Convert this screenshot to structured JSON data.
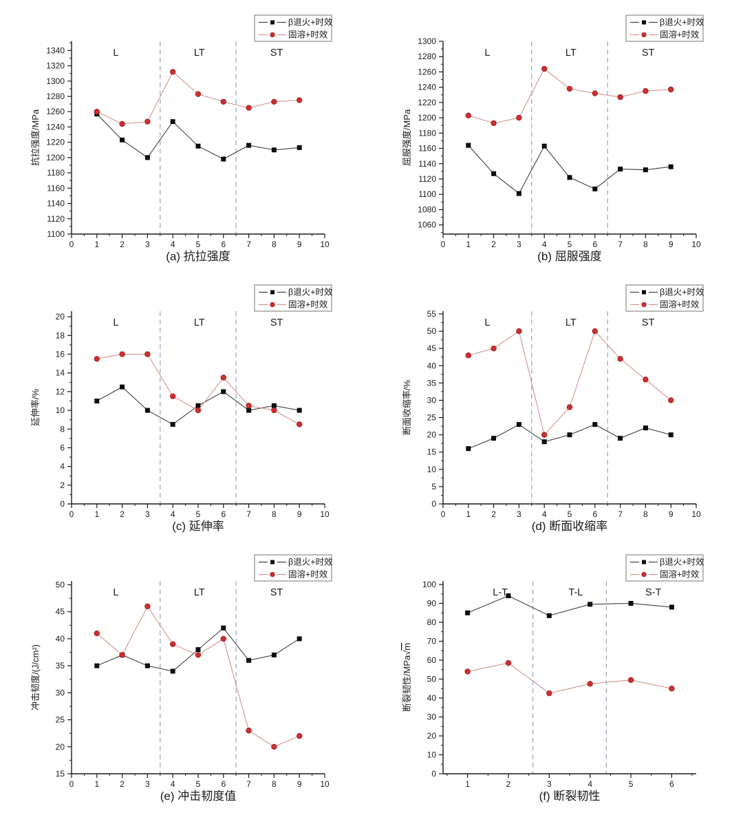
{
  "page": {
    "background": "#ffffff"
  },
  "colors": {
    "black_series_line": "#3f3f3f",
    "black_series_marker": "#0d0d0d",
    "red_series_line": "#d4938a",
    "red_series_marker": "#cd2f2f",
    "red_series_marker_edge": "#9a1f1f",
    "divider_dash": "#98a3c0",
    "axis": "#1a1a1a",
    "legend_border": "#8c8c8c",
    "text": "#1a1a1a"
  },
  "chart_data": [
    {
      "id": "a",
      "type": "line",
      "caption": "(a) 抗拉强度",
      "ylabel": "抗拉强度/MPa",
      "x": [
        1,
        2,
        3,
        4,
        5,
        6,
        7,
        8,
        9
      ],
      "series": [
        {
          "name": "β退火+时效",
          "marker": "square",
          "values": [
            1257,
            1223,
            1200,
            1247,
            1215,
            1198,
            1216,
            1210,
            1213
          ]
        },
        {
          "name": "固溶+时效",
          "marker": "circle",
          "values": [
            1260,
            1244,
            1247,
            1312,
            1283,
            1273,
            1265,
            1273,
            1275
          ]
        }
      ],
      "xlim": [
        0,
        10
      ],
      "ylim": [
        1100,
        1352
      ],
      "xticks": [
        0,
        1,
        2,
        3,
        4,
        5,
        6,
        7,
        8,
        9,
        10
      ],
      "yticks": [
        1100,
        1120,
        1140,
        1160,
        1180,
        1200,
        1220,
        1240,
        1260,
        1280,
        1300,
        1320,
        1340
      ],
      "x_minor_step": 0.5,
      "y_minor_step": 10,
      "regions": {
        "labels": [
          "L",
          "LT",
          "ST"
        ],
        "label_x": [
          1.75,
          5.05,
          8.1
        ],
        "dividers_x": [
          3.5,
          6.5
        ]
      }
    },
    {
      "id": "b",
      "type": "line",
      "caption": "(b) 屈服强度",
      "ylabel": "屈服强度/MPa",
      "x": [
        1,
        2,
        3,
        4,
        5,
        6,
        7,
        8,
        9
      ],
      "series": [
        {
          "name": "β退火+时效",
          "marker": "square",
          "values": [
            1164,
            1127,
            1101,
            1163,
            1122,
            1107,
            1133,
            1132,
            1136
          ]
        },
        {
          "name": "固溶+时效",
          "marker": "circle",
          "values": [
            1203,
            1193,
            1200,
            1264,
            1238,
            1232,
            1227,
            1235,
            1237
          ]
        }
      ],
      "xlim": [
        0,
        10
      ],
      "ylim": [
        1048,
        1300
      ],
      "xticks": [
        0,
        1,
        2,
        3,
        4,
        5,
        6,
        7,
        8,
        9,
        10
      ],
      "yticks": [
        1060,
        1080,
        1100,
        1120,
        1140,
        1160,
        1180,
        1200,
        1220,
        1240,
        1260,
        1280,
        1300
      ],
      "x_minor_step": 0.5,
      "y_minor_step": 10,
      "regions": {
        "labels": [
          "L",
          "LT",
          "ST"
        ],
        "label_x": [
          1.75,
          5.05,
          8.1
        ],
        "dividers_x": [
          3.5,
          6.5
        ]
      }
    },
    {
      "id": "c",
      "type": "line",
      "caption": "(c) 延伸率",
      "ylabel": "延伸率/%",
      "x": [
        1,
        2,
        3,
        4,
        5,
        6,
        7,
        8,
        9
      ],
      "series": [
        {
          "name": "β退火+时效",
          "marker": "square",
          "values": [
            11,
            12.5,
            10,
            8.5,
            10.5,
            12,
            10,
            10.5,
            10
          ]
        },
        {
          "name": "固溶+时效",
          "marker": "circle",
          "values": [
            15.5,
            16,
            16,
            11.5,
            10,
            13.5,
            10.5,
            10,
            8.5
          ]
        }
      ],
      "xlim": [
        0,
        10
      ],
      "ylim": [
        0,
        20.6
      ],
      "xticks": [
        0,
        1,
        2,
        3,
        4,
        5,
        6,
        7,
        8,
        9,
        10
      ],
      "yticks": [
        0,
        2,
        4,
        6,
        8,
        10,
        12,
        14,
        16,
        18,
        20
      ],
      "x_minor_step": 0.5,
      "y_minor_step": 1,
      "regions": {
        "labels": [
          "L",
          "LT",
          "ST"
        ],
        "label_x": [
          1.75,
          5.05,
          8.1
        ],
        "dividers_x": [
          3.5,
          6.5
        ]
      }
    },
    {
      "id": "d",
      "type": "line",
      "caption": "(d) 断面收缩率",
      "ylabel": "断面收缩率/%",
      "x": [
        1,
        2,
        3,
        4,
        5,
        6,
        7,
        8,
        9
      ],
      "series": [
        {
          "name": "β退火+时效",
          "marker": "square",
          "values": [
            16,
            19,
            23,
            18,
            20,
            23,
            19,
            22,
            20
          ]
        },
        {
          "name": "固溶+时效",
          "marker": "circle",
          "values": [
            43,
            45,
            50,
            20,
            28,
            50,
            42,
            36,
            30
          ]
        }
      ],
      "xlim": [
        0,
        10
      ],
      "ylim": [
        0,
        55.8
      ],
      "xticks": [
        0,
        1,
        2,
        3,
        4,
        5,
        6,
        7,
        8,
        9,
        10
      ],
      "yticks": [
        0,
        5,
        10,
        15,
        20,
        25,
        30,
        35,
        40,
        45,
        50,
        55
      ],
      "x_minor_step": 0.5,
      "y_minor_step": 2.5,
      "regions": {
        "labels": [
          "L",
          "LT",
          "ST"
        ],
        "label_x": [
          1.75,
          5.05,
          8.1
        ],
        "dividers_x": [
          3.5,
          6.5
        ]
      }
    },
    {
      "id": "e",
      "type": "line",
      "caption": "(e) 冲击韧度值",
      "ylabel": "冲击韧度/(J/cm²)",
      "x": [
        1,
        2,
        3,
        4,
        5,
        6,
        7,
        8,
        9
      ],
      "series": [
        {
          "name": "β退火+时效",
          "marker": "square",
          "values": [
            35,
            37,
            35,
            34,
            38,
            42,
            36,
            37,
            40
          ]
        },
        {
          "name": "固溶+时效",
          "marker": "circle",
          "values": [
            41,
            37,
            46,
            39,
            37,
            40,
            23,
            20,
            22
          ]
        }
      ],
      "xlim": [
        0,
        10
      ],
      "ylim": [
        15,
        50.7
      ],
      "xticks": [
        0,
        1,
        2,
        3,
        4,
        5,
        6,
        7,
        8,
        9,
        10
      ],
      "yticks": [
        15,
        20,
        25,
        30,
        35,
        40,
        45,
        50
      ],
      "x_minor_step": 0.5,
      "y_minor_step": 2.5,
      "regions": {
        "labels": [
          "L",
          "LT",
          "ST"
        ],
        "label_x": [
          1.75,
          5.05,
          8.1
        ],
        "dividers_x": [
          3.5,
          6.5
        ]
      }
    },
    {
      "id": "f",
      "type": "line",
      "caption": "(f) 断裂韧性",
      "ylabel": "断裂韧性/MPa",
      "ylabel_radicand": "m",
      "x": [
        1,
        2,
        3,
        4,
        5,
        6
      ],
      "series": [
        {
          "name": "β退火+时效",
          "marker": "square",
          "values": [
            85,
            94,
            83.5,
            89.5,
            90,
            88
          ]
        },
        {
          "name": "固溶+时效",
          "marker": "circle",
          "values": [
            54,
            58.5,
            42.5,
            47.5,
            49.5,
            45
          ]
        }
      ],
      "xlim": [
        0.4,
        6.6
      ],
      "ylim": [
        0,
        101.8
      ],
      "xticks": [
        1,
        2,
        3,
        4,
        5,
        6
      ],
      "yticks": [
        0,
        10,
        20,
        30,
        40,
        50,
        60,
        70,
        80,
        90,
        100
      ],
      "x_minor_step": 0.5,
      "y_minor_step": 5,
      "regions": {
        "labels": [
          "L-T",
          "T-L",
          "S-T"
        ],
        "label_x": [
          1.8,
          3.65,
          5.55
        ],
        "dividers_x": [
          2.6,
          4.4
        ]
      }
    }
  ]
}
